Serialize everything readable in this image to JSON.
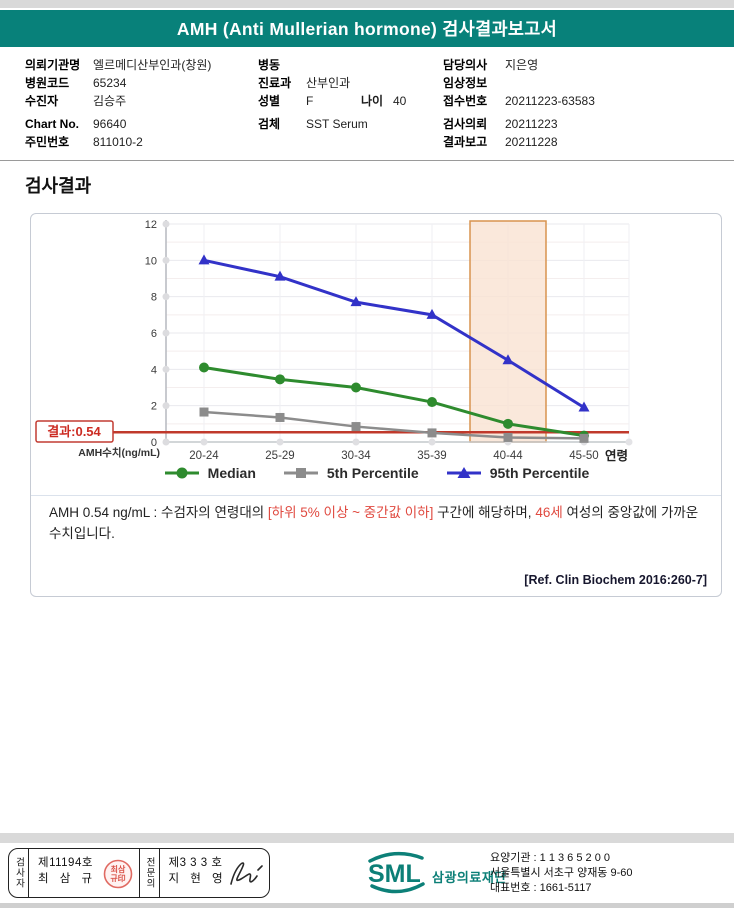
{
  "header": {
    "title": "AMH (Anti Mullerian hormone) 검사결과보고서"
  },
  "patient": {
    "col1": [
      {
        "label": "의뢰기관명",
        "value": "엘르메디산부인과(창원)"
      },
      {
        "label": "병원코드",
        "value": "65234"
      },
      {
        "label": "수진자",
        "value": "김승주"
      },
      {
        "label": "Chart No.",
        "value": "96640"
      },
      {
        "label": "주민번호",
        "value": "811010-2"
      }
    ],
    "col2": [
      {
        "label": "병동",
        "value": ""
      },
      {
        "label": "진료과",
        "value": "산부인과"
      },
      {
        "label": "성별",
        "value": "F",
        "label2": "나이",
        "value2": "40"
      },
      {
        "label": "검체",
        "value": "SST Serum"
      }
    ],
    "col3": [
      {
        "label": "담당의사",
        "value": "지은영"
      },
      {
        "label": "임상정보",
        "value": ""
      },
      {
        "label": "접수번호",
        "value": "20211223-63583"
      },
      {
        "label": "검사의뢰",
        "value": "20211223"
      },
      {
        "label": "결과보고",
        "value": "20211228"
      }
    ]
  },
  "section": {
    "title": "검사결과"
  },
  "chart_data": {
    "type": "line",
    "categories": [
      "20-24",
      "25-29",
      "30-34",
      "35-39",
      "40-44",
      "45-50"
    ],
    "series": [
      {
        "name": "Median",
        "marker": "circle",
        "color": "#2e8b2e",
        "values": [
          4.1,
          3.45,
          3.0,
          2.2,
          1.0,
          0.35
        ]
      },
      {
        "name": "5th Percentile",
        "marker": "square",
        "color": "#8c8c8c",
        "values": [
          1.65,
          1.35,
          0.85,
          0.5,
          0.25,
          0.2
        ]
      },
      {
        "name": "95th Percentile",
        "marker": "triangle",
        "color": "#3232c8",
        "values": [
          10.0,
          9.1,
          7.7,
          7.0,
          4.5,
          1.9
        ]
      }
    ],
    "xlabel": "연령",
    "ylabel": "AMH수치(ng/mL)",
    "ylim": [
      0,
      12
    ],
    "ytick_step": 2,
    "grid": true,
    "legend_position": "bottom",
    "result_value": 0.54,
    "result_label": "결과:0.54",
    "result_line_color": "#c0392b",
    "highlight_band": {
      "category": "40-44",
      "color": "#f9e2d2",
      "border": "#d8934f"
    }
  },
  "result": {
    "p1": "AMH  0.54 ng/mL : 수검자의 연령대의 ",
    "p2": "[하위 5% 이상 ~ 중간값 이하]",
    "p3": " 구간에 해당하며, ",
    "p4": "46세",
    "p5": " 여성의 중앙값에 가까운 수치입니다."
  },
  "reference": "[Ref. Clin Biochem 2016:260-7]",
  "footer": {
    "examiner_box": {
      "role1": "검사자",
      "cert1": "제11194호",
      "name1": "최 삼 규",
      "role2": "전문의",
      "cert2": "제3 3 3 호",
      "name2": "지 현 영"
    },
    "logo": {
      "text": "SML",
      "org": "삼광의료재단"
    },
    "info": {
      "line1": "요양기관 : 1 1 3 6 5 2 0 0",
      "line2": "서울특별시 서초구 양재동 9-60",
      "line3": "대표번호 : 1661-5117"
    }
  }
}
